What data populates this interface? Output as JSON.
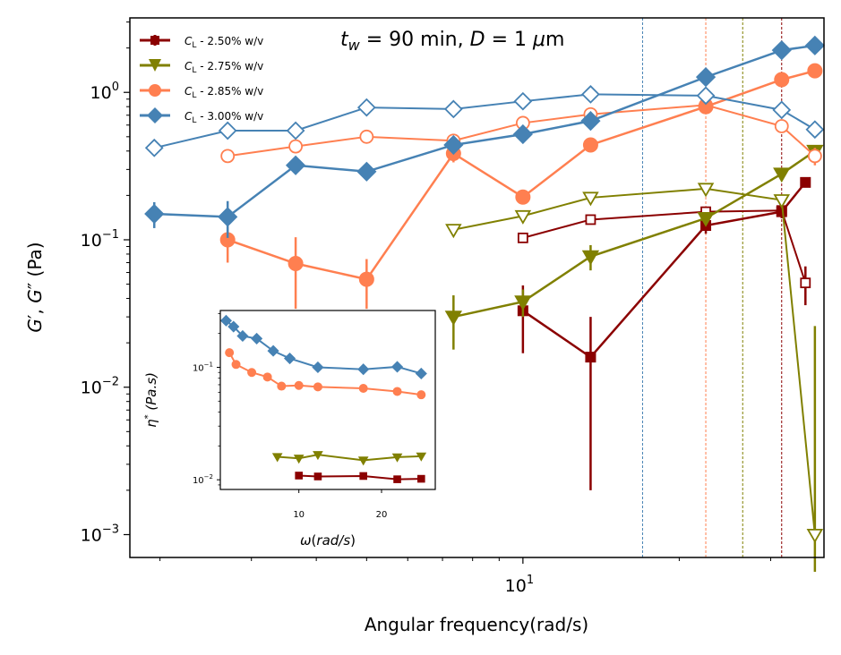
{
  "chart_data": {
    "type": "line",
    "title": "t_w = 90 min, D = 1 μm",
    "title_parts": {
      "tw_var": "t",
      "tw_sub": "w",
      "tw_eq": " =  90 min, ",
      "d_var": "D",
      "d_eq": " = 1 ",
      "mu": "μ",
      "unit": "m"
    },
    "xlabel": "Angular frequency(rad/s)",
    "ylabel_parts": {
      "g1": "G",
      "p1": "′",
      "sep": ", ",
      "g2": "G",
      "p2": "″",
      "unit": " (Pa)"
    },
    "xscale": "log",
    "yscale": "log",
    "xlim": [
      1.75,
      38
    ],
    "ylim": [
      0.0007,
      3.2
    ],
    "x_major_ticks": [
      {
        "value": 10,
        "base": "10",
        "exp": "1"
      }
    ],
    "x_minor_ticks": [
      2,
      3,
      4,
      5,
      6,
      7,
      8,
      9,
      20,
      30
    ],
    "y_major_ticks": [
      {
        "value": 0.001,
        "base": "10",
        "exp": "−3"
      },
      {
        "value": 0.01,
        "base": "10",
        "exp": "−2"
      },
      {
        "value": 0.1,
        "base": "10",
        "exp": "−1"
      },
      {
        "value": 1,
        "base": "10",
        "exp": "0"
      }
    ],
    "vlines": [
      {
        "x": 17.0,
        "color": "#4682b4"
      },
      {
        "x": 22.5,
        "color": "#ff7f50"
      },
      {
        "x": 26.5,
        "color": "#808000"
      },
      {
        "x": 31.5,
        "color": "#8b0000"
      }
    ],
    "series": [
      {
        "name": "C_L - 2.50% w/v",
        "label_var": "C",
        "label_sub": "L",
        "label_rest": " - 2.50% w/v",
        "color": "#8b0000",
        "marker": "square",
        "G_prime": {
          "x": [
            10,
            13.5,
            22.5,
            31.5,
            35
          ],
          "y": [
            0.033,
            0.016,
            0.125,
            0.155,
            0.245
          ],
          "err": [
            0.016,
            0.014,
            0.015,
            0.015,
            0.01
          ]
        },
        "G_double_prime": {
          "x": [
            10,
            13.5,
            22.5,
            31.5,
            35
          ],
          "y": [
            0.103,
            0.137,
            0.155,
            0.158,
            0.051
          ],
          "err": [
            0.005,
            0.005,
            0.005,
            0.005,
            0.015
          ]
        }
      },
      {
        "name": "C_L - 2.75% w/v",
        "label_var": "C",
        "label_sub": "L",
        "label_rest": " - 2.75% w/v",
        "color": "#808000",
        "marker": "triangle-down",
        "G_prime": {
          "x": [
            7.35,
            10,
            13.5,
            22.5,
            31.5,
            36.5
          ],
          "y": [
            0.03,
            0.038,
            0.077,
            0.14,
            0.28,
            0.4
          ],
          "err": [
            0.012,
            0.008,
            0.015,
            0.01,
            0.02,
            0.02
          ]
        },
        "G_double_prime": {
          "x": [
            7.35,
            10,
            13.5,
            22.5,
            31.5,
            36.5
          ],
          "y": [
            0.117,
            0.145,
            0.193,
            0.222,
            0.186,
            0.001
          ],
          "err": [
            0.004,
            0.005,
            0.005,
            0.005,
            0.005,
            0.025
          ]
        }
      },
      {
        "name": "C_L - 2.85% w/v",
        "label_var": "C",
        "label_sub": "L",
        "label_rest": " - 2.85% w/v",
        "color": "#ff7f50",
        "marker": "circle",
        "G_prime": {
          "x": [
            2.7,
            3.65,
            5,
            7.35,
            10,
            13.5,
            22.5,
            31.5,
            36.5
          ],
          "y": [
            0.1,
            0.069,
            0.054,
            0.385,
            0.195,
            0.44,
            0.8,
            1.22,
            1.4
          ],
          "err": [
            0.03,
            0.035,
            0.02,
            0.05,
            0.02,
            0.02,
            0.05,
            0.05,
            0.05
          ]
        },
        "G_double_prime": {
          "x": [
            2.7,
            3.65,
            5,
            7.35,
            10,
            13.5,
            22.5,
            31.5,
            36.5
          ],
          "y": [
            0.37,
            0.43,
            0.5,
            0.47,
            0.62,
            0.71,
            0.82,
            0.59,
            0.37
          ],
          "err": [
            0.02,
            0.02,
            0.02,
            0.02,
            0.02,
            0.02,
            0.03,
            0.03,
            0.05
          ]
        }
      },
      {
        "name": "C_L - 3.00% w/v",
        "label_var": "C",
        "label_sub": "L",
        "label_rest": " - 3.00% w/v",
        "color": "#4682b4",
        "marker": "diamond",
        "G_prime": {
          "x": [
            1.95,
            2.7,
            3.65,
            5,
            7.35,
            10,
            13.5,
            22.5,
            31.5,
            36.5
          ],
          "y": [
            0.15,
            0.143,
            0.32,
            0.29,
            0.44,
            0.52,
            0.64,
            1.27,
            1.93,
            2.08
          ],
          "err": [
            0.03,
            0.04,
            0.02,
            0.02,
            0.02,
            0.02,
            0.02,
            0.05,
            0.05,
            0.05
          ]
        },
        "G_double_prime": {
          "x": [
            1.95,
            2.7,
            3.65,
            5,
            7.35,
            10,
            13.5,
            22.5,
            31.5,
            36.5
          ],
          "y": [
            0.42,
            0.55,
            0.55,
            0.79,
            0.77,
            0.87,
            0.97,
            0.95,
            0.76,
            0.56
          ],
          "err": [
            0.02,
            0.02,
            0.02,
            0.02,
            0.02,
            0.02,
            0.03,
            0.03,
            0.05,
            0.05
          ]
        }
      }
    ],
    "inset": {
      "type": "line",
      "xlabel_parts": {
        "omega": "ω",
        "open": "(",
        "unit": "rad/s",
        "close": ")"
      },
      "ylabel_parts": {
        "eta": "η",
        "star": "*",
        "space": " ",
        "unit": "(Pa.s)"
      },
      "xscale": "linear",
      "yscale": "log",
      "xlim": [
        0.5,
        26.5
      ],
      "ylim": [
        0.0082,
        0.32
      ],
      "x_ticks": [
        10,
        20
      ],
      "y_major_ticks": [
        {
          "value": 0.01,
          "base": "10",
          "exp": "−2"
        },
        {
          "value": 0.1,
          "base": "10",
          "exp": "−1"
        }
      ],
      "series": [
        {
          "name": "C_L - 2.50% w/v",
          "color": "#8b0000",
          "marker": "square",
          "x": [
            10,
            12.3,
            17.8,
            21.9,
            24.8
          ],
          "y": [
            0.0109,
            0.0107,
            0.0108,
            0.0101,
            0.0102
          ]
        },
        {
          "name": "C_L - 2.75% w/v",
          "color": "#808000",
          "marker": "triangle-down",
          "x": [
            7.4,
            10,
            12.3,
            17.8,
            21.9,
            24.8
          ],
          "y": [
            0.016,
            0.0155,
            0.0167,
            0.0149,
            0.0159,
            0.0162
          ]
        },
        {
          "name": "C_L - 2.85% w/v",
          "color": "#ff7f50",
          "marker": "circle",
          "x": [
            1.6,
            2.4,
            4.3,
            6.2,
            7.9,
            10,
            12.3,
            17.8,
            21.9,
            24.8
          ],
          "y": [
            0.135,
            0.106,
            0.09,
            0.082,
            0.068,
            0.069,
            0.067,
            0.065,
            0.061,
            0.057
          ]
        },
        {
          "name": "C_L - 3.00% w/v",
          "color": "#4682b4",
          "marker": "diamond",
          "x": [
            1.2,
            2.1,
            3.2,
            4.9,
            6.9,
            8.9,
            12.3,
            17.8,
            21.9,
            24.8
          ],
          "y": [
            0.26,
            0.23,
            0.19,
            0.18,
            0.14,
            0.12,
            0.1,
            0.096,
            0.101,
            0.088
          ]
        }
      ]
    }
  }
}
